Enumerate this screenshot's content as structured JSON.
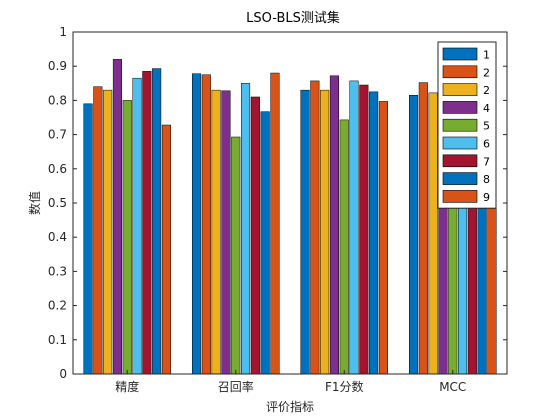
{
  "chart_data": {
    "type": "bar",
    "title": "LSO-BLS测试集",
    "xlabel": "评价指标",
    "ylabel": "数值",
    "categories": [
      "精度",
      "召回率",
      "F1分数",
      "MCC"
    ],
    "ylim": [
      0,
      1
    ],
    "yticks": [
      0,
      0.1,
      0.2,
      0.3,
      0.4,
      0.5,
      0.6,
      0.7,
      0.8,
      0.9,
      1
    ],
    "ytick_labels": [
      "0",
      "0.1",
      "0.2",
      "0.3",
      "0.4",
      "0.5",
      "0.6",
      "0.7",
      "0.8",
      "0.9",
      "1"
    ],
    "legend_position": "top-right",
    "series": [
      {
        "name": "1",
        "color": "#0072BD",
        "values": [
          0.79,
          0.878,
          0.83,
          0.815
        ]
      },
      {
        "name": "2",
        "color": "#D95319",
        "values": [
          0.84,
          0.875,
          0.857,
          0.852
        ]
      },
      {
        "name": "2",
        "color": "#EDB120",
        "values": [
          0.83,
          0.83,
          0.83,
          0.822
        ]
      },
      {
        "name": "4",
        "color": "#7E2F8E",
        "values": [
          0.92,
          0.828,
          0.872,
          0.85
        ]
      },
      {
        "name": "5",
        "color": "#77AC30",
        "values": [
          0.8,
          0.693,
          0.743,
          0.62
        ]
      },
      {
        "name": "6",
        "color": "#4DBEEE",
        "values": [
          0.865,
          0.85,
          0.857,
          0.8
        ]
      },
      {
        "name": "7",
        "color": "#A2142F",
        "values": [
          0.885,
          0.81,
          0.845,
          0.8
        ]
      },
      {
        "name": "8",
        "color": "#0072BD",
        "values": [
          0.893,
          0.767,
          0.825,
          0.79
        ]
      },
      {
        "name": "9",
        "color": "#D95319",
        "values": [
          0.728,
          0.88,
          0.797,
          0.745
        ]
      }
    ]
  }
}
